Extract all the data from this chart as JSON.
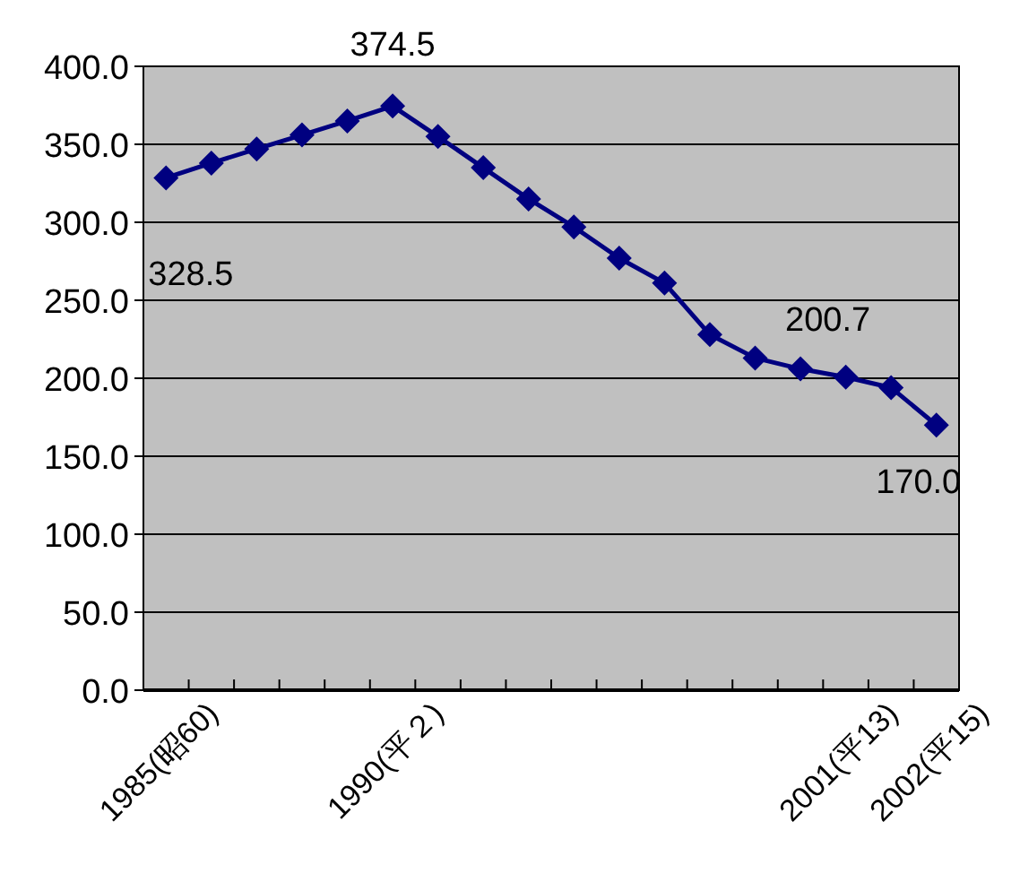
{
  "chart_data": {
    "type": "line",
    "categories": [
      "1985(昭60)",
      null,
      null,
      null,
      null,
      "1990(平２)",
      null,
      null,
      null,
      null,
      null,
      null,
      null,
      null,
      null,
      "2001(平13)",
      null,
      "2002(平15)"
    ],
    "series": [
      {
        "color": "#000080",
        "values": [
          328.5,
          338,
          347,
          356,
          365,
          374.5,
          355,
          335,
          315,
          297,
          277,
          261,
          228,
          213,
          206,
          200.7,
          194,
          170.0
        ],
        "value_labels": [
          "328.5",
          null,
          null,
          null,
          null,
          "374.5",
          null,
          null,
          null,
          null,
          null,
          null,
          null,
          null,
          null,
          "200.7",
          null,
          "170.0"
        ]
      }
    ],
    "ylim": [
      0,
      400
    ],
    "yticks": [
      {
        "value": 0,
        "label": "0.0"
      },
      {
        "value": 50,
        "label": "50.0"
      },
      {
        "value": 100,
        "label": "100.0"
      },
      {
        "value": 150,
        "label": "150.0"
      },
      {
        "value": 200,
        "label": "200.0"
      },
      {
        "value": 250,
        "label": "250.0"
      },
      {
        "value": 300,
        "label": "300.0"
      },
      {
        "value": 350,
        "label": "350.0"
      },
      {
        "value": 400,
        "label": "400.0"
      }
    ],
    "grid": "y",
    "marker": "diamond",
    "line_style": "solid"
  }
}
